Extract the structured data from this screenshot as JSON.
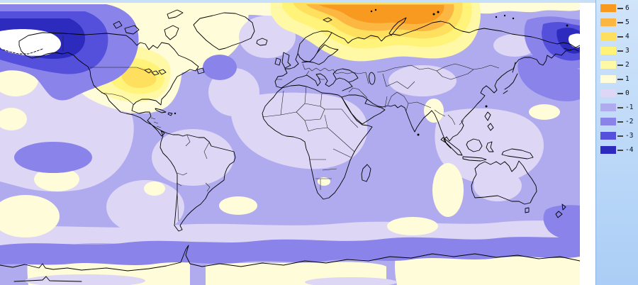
{
  "colorbar": {
    "items": [
      {
        "label": "6",
        "color": "#F79A1F"
      },
      {
        "label": "5",
        "color": "#FBB742"
      },
      {
        "label": "4",
        "color": "#FFDF5E"
      },
      {
        "label": "3",
        "color": "#FFF379"
      },
      {
        "label": "2",
        "color": "#FFF9A6"
      },
      {
        "label": "1",
        "color": "#FFFCD9"
      },
      {
        "label": "0",
        "color": "#DDD6F5"
      },
      {
        "label": "-1",
        "color": "#B0ABEE"
      },
      {
        "label": "-2",
        "color": "#8983EA"
      },
      {
        "label": "-3",
        "color": "#5450DC"
      },
      {
        "label": "-4",
        "color": "#2D2BBE"
      }
    ],
    "panel": {
      "bg_top": "#D0E4FA",
      "bg_bottom": "#ABCEF6",
      "border_color": "#8FB2DC",
      "tick_color": "#444444",
      "label_color": "#111111"
    }
  },
  "map": {
    "offscale_color": "#FFFFFF",
    "coastline_color": "#000000",
    "border_color": "#1A1A1A",
    "top_strip_color": "#C8DFF8",
    "gutter_color": "#FFFFFF"
  }
}
